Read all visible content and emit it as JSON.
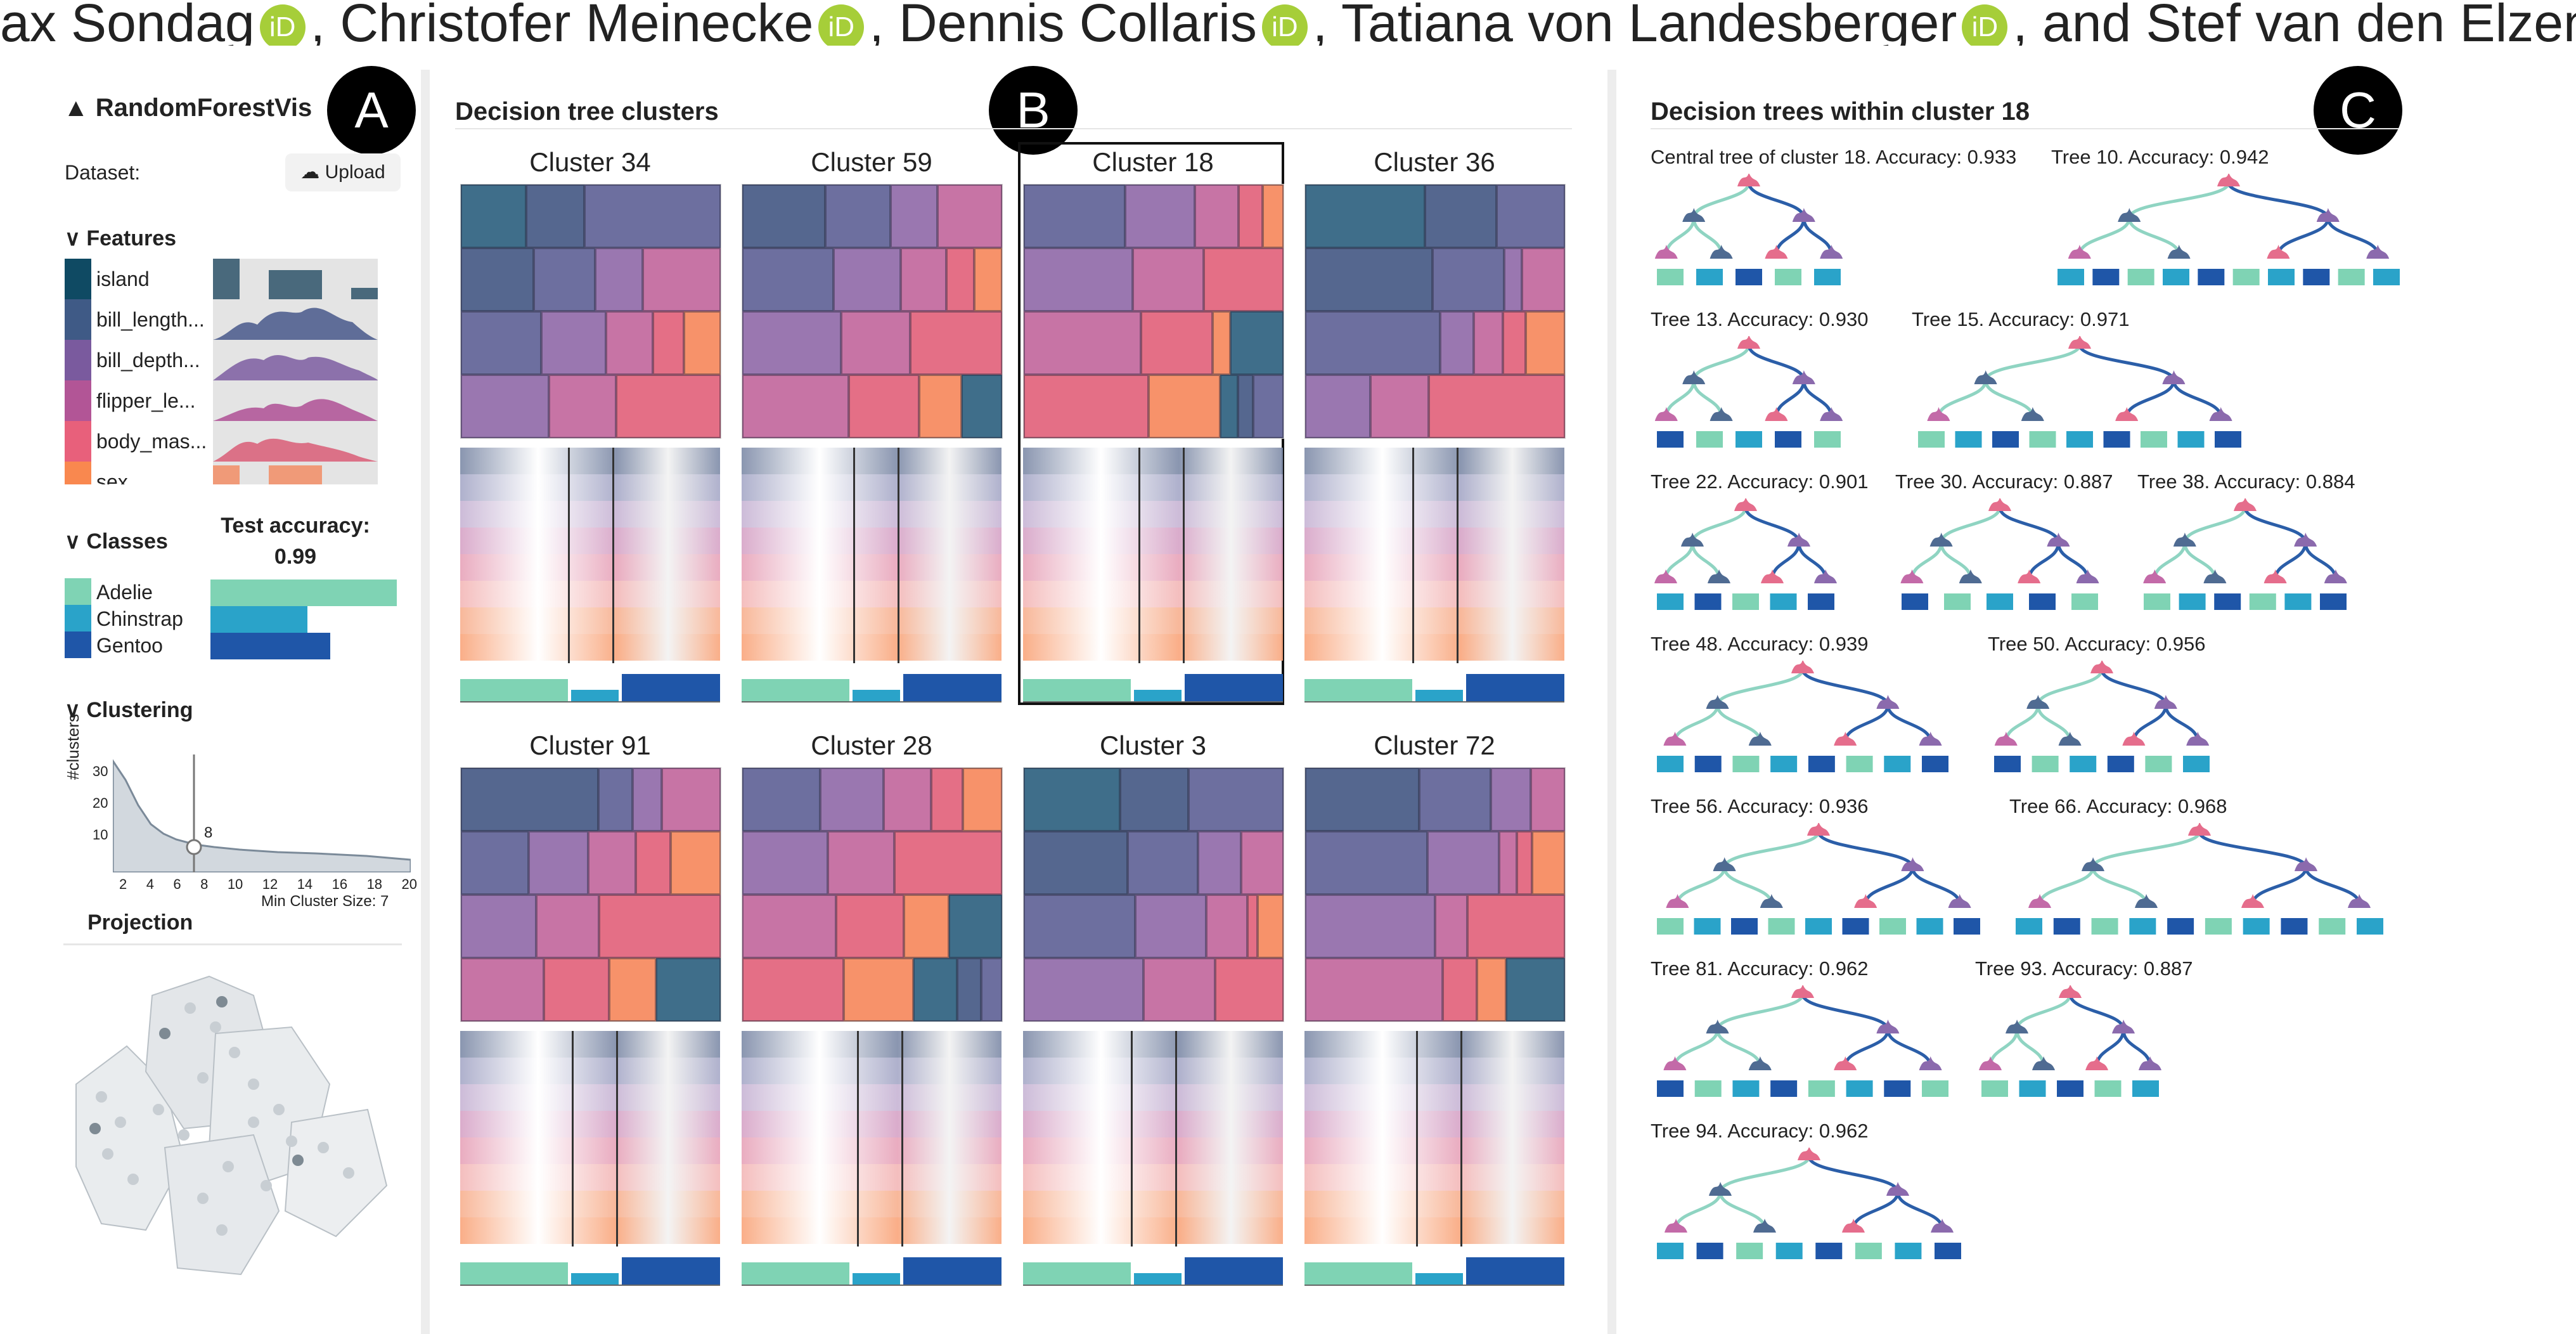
{
  "authors": {
    "names": [
      "ax Sondag",
      ", Christofer Meinecke",
      ", Dennis Collaris",
      ", Tatiana von Landesberger",
      ", and Stef van den Elzen"
    ],
    "orcid_label": "iD"
  },
  "panel_labels": [
    "A",
    "B",
    "C"
  ],
  "sidebar": {
    "app_title": "RandomForestVis",
    "dataset_label": "Dataset:",
    "upload_label": "Upload",
    "features_header": "Features",
    "features": [
      {
        "name": "island",
        "color": "#0f4a63"
      },
      {
        "name": "bill_length...",
        "color": "#3f5a86"
      },
      {
        "name": "bill_depth...",
        "color": "#7a5a9e"
      },
      {
        "name": "flipper_le...",
        "color": "#b25596"
      },
      {
        "name": "body_mas...",
        "color": "#e8607b"
      },
      {
        "name": "sex",
        "color": "#f9884f"
      }
    ],
    "classes_header": "Classes",
    "test_accuracy_label": "Test accuracy:",
    "test_accuracy_value": "0.99",
    "classes": [
      {
        "name": "Adelie",
        "color": "#7fd3b4",
        "fraction": 0.98
      },
      {
        "name": "Chinstrap",
        "color": "#2aa3c9",
        "fraction": 0.51
      },
      {
        "name": "Gentoo",
        "color": "#1f56a8",
        "fraction": 0.63
      }
    ],
    "clustering_header": "Clustering",
    "clustering_chart": {
      "ylabel": "#clusters",
      "yticks": [
        "30",
        "20",
        "10"
      ],
      "xticks": [
        "2",
        "4",
        "6",
        "8",
        "10",
        "12",
        "14",
        "16",
        "18",
        "20"
      ],
      "marker_label": "8",
      "min_cluster_label": "Min Cluster Size: 7"
    },
    "projection_header": "Projection"
  },
  "clusters_panel": {
    "title": "Decision tree clusters",
    "clusters": [
      {
        "name": "Cluster 34",
        "selected": false
      },
      {
        "name": "Cluster 59",
        "selected": false
      },
      {
        "name": "Cluster 18",
        "selected": true
      },
      {
        "name": "Cluster 36",
        "selected": false
      },
      {
        "name": "Cluster 91",
        "selected": false
      },
      {
        "name": "Cluster 28",
        "selected": false
      },
      {
        "name": "Cluster 3",
        "selected": false
      },
      {
        "name": "Cluster 72",
        "selected": false
      }
    ]
  },
  "trees_panel": {
    "title": "Decision trees within cluster 18",
    "trees": [
      "Central tree of cluster 18. Accuracy: 0.933",
      "Tree 10. Accuracy: 0.942",
      "Tree 13. Accuracy: 0.930",
      "Tree 15. Accuracy: 0.971",
      "Tree 22. Accuracy: 0.901",
      "Tree 30. Accuracy: 0.887",
      "Tree 38. Accuracy: 0.884",
      "Tree 48. Accuracy: 0.939",
      "Tree 50. Accuracy: 0.956",
      "Tree 56. Accuracy: 0.936",
      "Tree 66. Accuracy: 0.968",
      "Tree 81. Accuracy: 0.962",
      "Tree 93. Accuracy: 0.887",
      "Tree 94. Accuracy: 0.962"
    ],
    "node_labels": [
      "Adelie",
      "Chinstrap",
      "Gentoo"
    ]
  }
}
